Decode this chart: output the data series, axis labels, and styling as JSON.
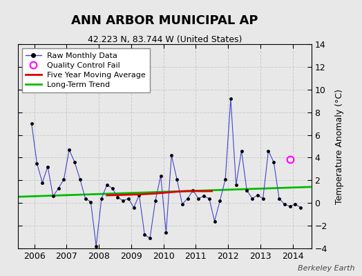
{
  "title": "ANN ARBOR MUNICIPAL AP",
  "subtitle": "42.223 N, 83.744 W (United States)",
  "ylabel": "Temperature Anomaly (°C)",
  "credit": "Berkeley Earth",
  "ylim": [
    -4,
    14
  ],
  "yticks": [
    -4,
    -2,
    0,
    2,
    4,
    6,
    8,
    10,
    12,
    14
  ],
  "xlim_start": 2005.5,
  "xlim_end": 2014.58,
  "xtick_years": [
    2006,
    2007,
    2008,
    2009,
    2010,
    2011,
    2012,
    2013,
    2014
  ],
  "bg_color": "#e8e8e8",
  "grid_color": "#c8c8c8",
  "raw_color": "#4444cc",
  "ma_color": "#dd0000",
  "trend_color": "#00bb00",
  "qc_color": "#ff00ff",
  "raw_monthly": [
    [
      2005.917,
      7.0
    ],
    [
      2006.083,
      3.5
    ],
    [
      2006.25,
      1.8
    ],
    [
      2006.417,
      3.2
    ],
    [
      2006.583,
      0.6
    ],
    [
      2006.75,
      1.3
    ],
    [
      2006.917,
      2.1
    ],
    [
      2007.083,
      4.7
    ],
    [
      2007.25,
      3.6
    ],
    [
      2007.417,
      2.1
    ],
    [
      2007.583,
      0.4
    ],
    [
      2007.75,
      0.1
    ],
    [
      2007.917,
      -3.8
    ],
    [
      2008.083,
      0.4
    ],
    [
      2008.25,
      1.6
    ],
    [
      2008.417,
      1.3
    ],
    [
      2008.583,
      0.5
    ],
    [
      2008.75,
      0.2
    ],
    [
      2008.917,
      0.4
    ],
    [
      2009.083,
      -0.4
    ],
    [
      2009.25,
      0.7
    ],
    [
      2009.417,
      -2.8
    ],
    [
      2009.583,
      -3.1
    ],
    [
      2009.75,
      0.2
    ],
    [
      2009.917,
      2.4
    ],
    [
      2010.083,
      -2.6
    ],
    [
      2010.25,
      4.2
    ],
    [
      2010.417,
      2.1
    ],
    [
      2010.583,
      -0.1
    ],
    [
      2010.75,
      0.4
    ],
    [
      2010.917,
      1.1
    ],
    [
      2011.083,
      0.4
    ],
    [
      2011.25,
      0.6
    ],
    [
      2011.417,
      0.4
    ],
    [
      2011.583,
      -1.6
    ],
    [
      2011.75,
      0.2
    ],
    [
      2011.917,
      2.1
    ],
    [
      2012.083,
      9.2
    ],
    [
      2012.25,
      1.6
    ],
    [
      2012.417,
      4.6
    ],
    [
      2012.583,
      1.1
    ],
    [
      2012.75,
      0.4
    ],
    [
      2012.917,
      0.7
    ],
    [
      2013.083,
      0.4
    ],
    [
      2013.25,
      4.6
    ],
    [
      2013.417,
      3.6
    ],
    [
      2013.583,
      0.4
    ],
    [
      2013.75,
      -0.1
    ],
    [
      2013.917,
      -0.3
    ],
    [
      2014.083,
      -0.1
    ],
    [
      2014.25,
      -0.4
    ]
  ],
  "five_year_ma": [
    [
      2008.25,
      0.68
    ],
    [
      2008.5,
      0.7
    ],
    [
      2008.75,
      0.72
    ],
    [
      2009.0,
      0.74
    ],
    [
      2009.25,
      0.76
    ],
    [
      2009.5,
      0.8
    ],
    [
      2009.75,
      0.84
    ],
    [
      2010.0,
      0.9
    ],
    [
      2010.25,
      0.96
    ],
    [
      2010.5,
      1.02
    ],
    [
      2010.75,
      1.05
    ],
    [
      2011.0,
      1.05
    ],
    [
      2011.25,
      1.04
    ],
    [
      2011.5,
      1.05
    ]
  ],
  "trend_line": [
    [
      2005.5,
      0.55
    ],
    [
      2014.58,
      1.42
    ]
  ],
  "qc_fail_points": [
    [
      2013.917,
      3.85
    ]
  ],
  "title_fontsize": 13,
  "subtitle_fontsize": 9,
  "tick_labelsize": 9,
  "ylabel_fontsize": 9,
  "credit_fontsize": 8,
  "legend_fontsize": 8
}
